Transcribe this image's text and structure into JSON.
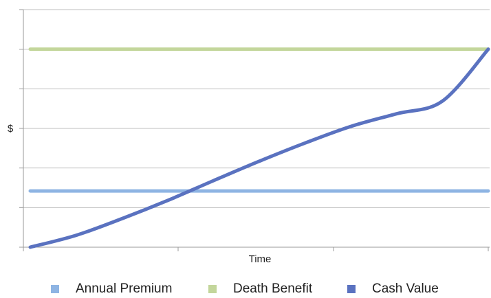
{
  "chart_data": {
    "type": "line",
    "title": "",
    "xlabel": "Time",
    "ylabel": "$",
    "grid": true,
    "legend_position": "bottom",
    "x": [
      0,
      0.1,
      0.2,
      0.3,
      0.4,
      0.5,
      0.6,
      0.7,
      0.8,
      0.9,
      1.0
    ],
    "ylim": [
      0,
      6
    ],
    "series": [
      {
        "name": "Annual Premium",
        "color": "#8eb4e3",
        "values": [
          1.42,
          1.42,
          1.42,
          1.42,
          1.42,
          1.42,
          1.42,
          1.42,
          1.42,
          1.42,
          1.42
        ]
      },
      {
        "name": "Death Benefit",
        "color": "#c3d69b",
        "values": [
          5.0,
          5.0,
          5.0,
          5.0,
          5.0,
          5.0,
          5.0,
          5.0,
          5.0,
          5.0,
          5.0
        ]
      },
      {
        "name": "Cash Value",
        "color": "#5a72c0",
        "values": [
          0.0,
          0.3,
          0.72,
          1.18,
          1.68,
          2.17,
          2.63,
          3.05,
          3.37,
          3.69,
          5.0
        ]
      }
    ]
  }
}
